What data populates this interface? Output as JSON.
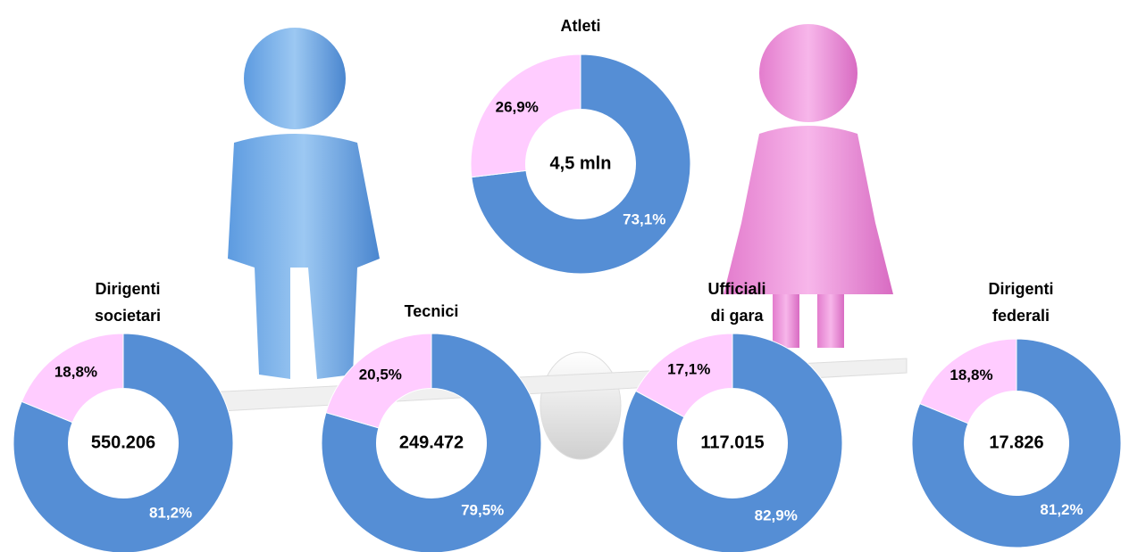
{
  "chart_data": [
    {
      "type": "donut",
      "title": [
        "Atleti"
      ],
      "center_label": "4,5 mln",
      "values": [
        73.1,
        26.9
      ],
      "value_labels": [
        "73,1%",
        "26,9%"
      ],
      "colors": [
        "#558ed5",
        "#ffccff"
      ]
    },
    {
      "type": "donut",
      "title": [
        "Dirigenti",
        "societari"
      ],
      "center_label": "550.206",
      "values": [
        81.2,
        18.8
      ],
      "value_labels": [
        "81,2%",
        "18,8%"
      ],
      "colors": [
        "#558ed5",
        "#ffccff"
      ]
    },
    {
      "type": "donut",
      "title": [
        "Tecnici"
      ],
      "center_label": "249.472",
      "values": [
        79.5,
        20.5
      ],
      "value_labels": [
        "79,5%",
        "20,5%"
      ],
      "colors": [
        "#558ed5",
        "#ffccff"
      ]
    },
    {
      "type": "donut",
      "title": [
        "Ufficiali",
        "di gara"
      ],
      "center_label": "117.015",
      "values": [
        82.9,
        17.1
      ],
      "value_labels": [
        "82,9%",
        "17,1%"
      ],
      "colors": [
        "#558ed5",
        "#ffccff"
      ]
    },
    {
      "type": "donut",
      "title": [
        "Dirigenti",
        "federali"
      ],
      "center_label": "17.826",
      "values": [
        81.2,
        18.8
      ],
      "value_labels": [
        "81,2%",
        "18,8%"
      ],
      "colors": [
        "#558ed5",
        "#ffccff"
      ]
    }
  ]
}
